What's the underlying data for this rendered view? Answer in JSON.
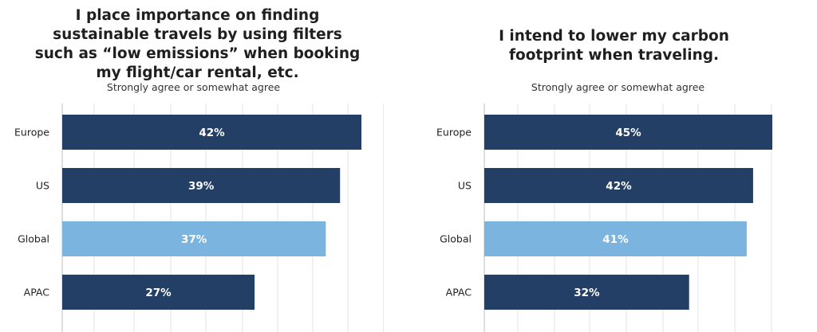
{
  "chart_data": [
    {
      "type": "bar",
      "orientation": "horizontal",
      "title": "I place importance on finding sustainable travels by using filters such as “low emissions” when booking my flight/car rental, etc.",
      "subtitle": "Strongly agree or somewhat agree",
      "categories": [
        "Europe",
        "US",
        "Global",
        "APAC"
      ],
      "values": [
        42,
        39,
        37,
        27
      ],
      "value_labels": [
        "42%",
        "39%",
        "37%",
        "27%"
      ],
      "highlight": "Global",
      "xlim": [
        0,
        42
      ],
      "grid": true,
      "colors": {
        "bar": "#243f66",
        "highlight": "#7ab4df",
        "grid": "#e3e3e3",
        "axis": "#bdbdbd"
      }
    },
    {
      "type": "bar",
      "orientation": "horizontal",
      "title": "I intend to lower my carbon footprint when traveling.",
      "subtitle": "Strongly agree or somewhat agree",
      "categories": [
        "Europe",
        "US",
        "Global",
        "APAC"
      ],
      "values": [
        45,
        42,
        41,
        32
      ],
      "value_labels": [
        "45%",
        "42%",
        "41%",
        "32%"
      ],
      "highlight": "Global",
      "xlim": [
        0,
        45
      ],
      "grid": true,
      "colors": {
        "bar": "#243f66",
        "highlight": "#7ab4df",
        "grid": "#e3e3e3",
        "axis": "#bdbdbd"
      }
    }
  ]
}
